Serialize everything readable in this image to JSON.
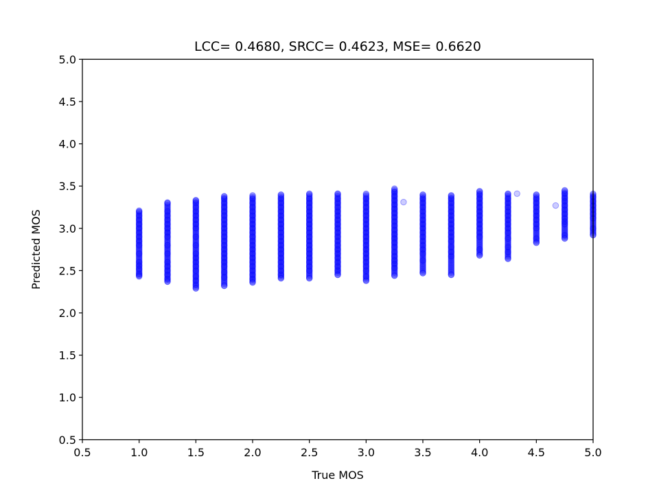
{
  "chart_data": {
    "type": "scatter",
    "title": "LCC= 0.4680, SRCC= 0.4623, MSE= 0.6620",
    "xlabel": "True MOS",
    "ylabel": "Predicted MOS",
    "xlim": [
      0.5,
      5.0
    ],
    "ylim": [
      0.5,
      5.0
    ],
    "xticks": [
      "0.5",
      "1.0",
      "1.5",
      "2.0",
      "2.5",
      "3.0",
      "3.5",
      "4.0",
      "4.5",
      "5.0"
    ],
    "yticks": [
      "0.5",
      "1.0",
      "1.5",
      "2.0",
      "2.5",
      "3.0",
      "3.5",
      "4.0",
      "4.5",
      "5.0"
    ],
    "grid": false,
    "marker_color": "#0000ff",
    "marker_alpha": 0.2,
    "columns": [
      {
        "x": 1.0,
        "y_min": 2.43,
        "y_max": 3.21,
        "y": [
          2.44,
          2.46,
          2.52,
          2.56,
          2.6,
          2.7,
          2.8,
          2.85,
          2.9,
          2.95,
          3.0,
          3.05,
          3.1,
          3.15,
          3.2
        ]
      },
      {
        "x": 1.25,
        "y_min": 2.37,
        "y_max": 3.31,
        "y": [
          2.37,
          2.4,
          2.45,
          2.5,
          2.55,
          2.6,
          2.7,
          2.8,
          2.9,
          2.95,
          3.0,
          3.05,
          3.1,
          3.15,
          3.2,
          3.3
        ]
      },
      {
        "x": 1.5,
        "y_min": 2.29,
        "y_max": 3.34,
        "y": [
          2.29,
          2.33,
          2.38,
          2.43,
          2.5,
          2.55,
          2.6,
          2.65,
          2.7,
          2.8,
          2.9,
          3.0,
          3.05,
          3.1,
          3.15,
          3.2,
          3.25,
          3.3,
          3.33
        ]
      },
      {
        "x": 1.75,
        "y_min": 2.32,
        "y_max": 3.38,
        "y": [
          2.32,
          2.42,
          2.48,
          2.55,
          2.6,
          2.65,
          2.7,
          2.75,
          2.8,
          2.85,
          2.9,
          2.95,
          3.0,
          3.05,
          3.1,
          3.15,
          3.2,
          3.25,
          3.3,
          3.35,
          3.38
        ]
      },
      {
        "x": 2.0,
        "y_min": 2.36,
        "y_max": 3.39,
        "y": [
          2.36,
          2.4,
          2.45,
          2.5,
          2.55,
          2.6,
          2.65,
          2.7,
          2.75,
          2.8,
          2.85,
          2.9,
          2.95,
          3.0,
          3.05,
          3.1,
          3.15,
          3.2,
          3.25,
          3.3,
          3.35,
          3.39
        ]
      },
      {
        "x": 2.25,
        "y_min": 2.41,
        "y_max": 3.4,
        "y": [
          2.41,
          2.45,
          2.5,
          2.55,
          2.6,
          2.65,
          2.7,
          2.75,
          2.8,
          2.85,
          2.9,
          2.95,
          3.0,
          3.05,
          3.1,
          3.15,
          3.2,
          3.25,
          3.3,
          3.35,
          3.4
        ]
      },
      {
        "x": 2.5,
        "y_min": 2.41,
        "y_max": 3.41,
        "y": [
          2.41,
          2.5,
          2.55,
          2.6,
          2.65,
          2.7,
          2.75,
          2.8,
          2.85,
          2.9,
          2.95,
          3.0,
          3.05,
          3.1,
          3.15,
          3.2,
          3.25,
          3.3,
          3.35,
          3.41
        ]
      },
      {
        "x": 2.75,
        "y_min": 2.45,
        "y_max": 3.41,
        "y": [
          2.45,
          2.5,
          2.55,
          2.6,
          2.65,
          2.7,
          2.75,
          2.8,
          2.85,
          2.9,
          2.95,
          3.0,
          3.05,
          3.1,
          3.15,
          3.2,
          3.25,
          3.3,
          3.35,
          3.41
        ]
      },
      {
        "x": 3.0,
        "y_min": 2.38,
        "y_max": 3.41,
        "y": [
          2.38,
          2.43,
          2.5,
          2.55,
          2.6,
          2.65,
          2.7,
          2.75,
          2.8,
          2.85,
          2.9,
          2.95,
          3.0,
          3.05,
          3.1,
          3.15,
          3.2,
          3.25,
          3.3,
          3.35,
          3.41
        ]
      },
      {
        "x": 3.25,
        "y_min": 2.44,
        "y_max": 3.47,
        "y": [
          2.44,
          2.53,
          2.58,
          2.62,
          2.67,
          2.72,
          2.78,
          2.83,
          2.88,
          2.93,
          2.98,
          3.03,
          3.08,
          3.13,
          3.18,
          3.23,
          3.28,
          3.33,
          3.38,
          3.43,
          3.47
        ]
      },
      {
        "x": 3.5,
        "y_min": 2.47,
        "y_max": 3.4,
        "y": [
          2.47,
          2.62,
          2.7,
          2.75,
          2.8,
          2.85,
          2.9,
          2.95,
          3.0,
          3.05,
          3.1,
          3.15,
          3.2,
          3.25,
          3.3,
          3.35,
          3.4
        ]
      },
      {
        "x": 3.75,
        "y_min": 2.45,
        "y_max": 3.39,
        "y": [
          2.45,
          2.67,
          2.72,
          2.78,
          2.85,
          2.9,
          2.95,
          3.0,
          3.05,
          3.1,
          3.15,
          3.2,
          3.25,
          3.3,
          3.35,
          3.39
        ]
      },
      {
        "x": 4.0,
        "y_min": 2.68,
        "y_max": 3.44,
        "y": [
          2.68,
          2.75,
          2.9,
          2.95,
          3.0,
          3.05,
          3.1,
          3.15,
          3.2,
          3.25,
          3.3,
          3.35,
          3.4,
          3.44
        ]
      },
      {
        "x": 4.25,
        "y_min": 2.64,
        "y_max": 3.41,
        "y": [
          2.64,
          2.72,
          2.78,
          2.88,
          2.95,
          3.0,
          3.05,
          3.1,
          3.15,
          3.2,
          3.25,
          3.3,
          3.35,
          3.41
        ]
      },
      {
        "x": 4.5,
        "y_min": 2.83,
        "y_max": 3.4,
        "y": [
          2.83,
          2.88,
          3.0,
          3.05,
          3.1,
          3.15,
          3.2,
          3.25,
          3.3,
          3.35,
          3.4
        ]
      },
      {
        "x": 4.75,
        "y_min": 2.88,
        "y_max": 3.45,
        "y": [
          2.88,
          2.92,
          3.05,
          3.08,
          3.12,
          3.17,
          3.22,
          3.27,
          3.32,
          3.36,
          3.41,
          3.45
        ]
      },
      {
        "x": 5.0,
        "y_min": 2.92,
        "y_max": 3.41,
        "y": [
          2.92,
          3.0,
          3.12,
          3.17,
          3.22,
          3.27,
          3.32,
          3.37,
          3.41
        ]
      }
    ],
    "outliers": [
      {
        "x": 3.33,
        "y": 3.31
      },
      {
        "x": 4.33,
        "y": 3.41
      },
      {
        "x": 4.67,
        "y": 3.27
      }
    ]
  }
}
